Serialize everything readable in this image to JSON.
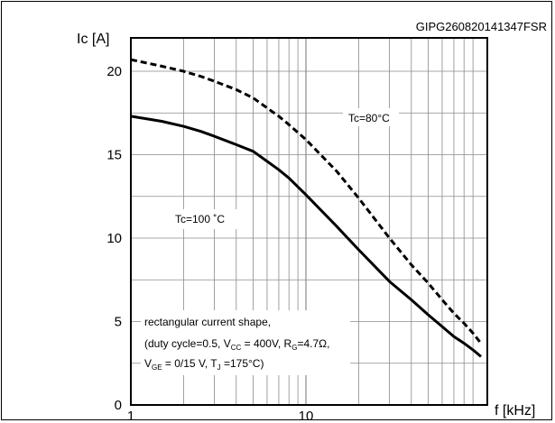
{
  "figure_code": "GIPG260820141347FSR",
  "chart_data": {
    "type": "line",
    "title": "",
    "xlabel": "f [kHz]",
    "ylabel": "Ic [A]",
    "x_scale": "log",
    "xlim": [
      1,
      100
    ],
    "ylim": [
      0,
      22
    ],
    "grid": true,
    "x_tick_labels": [
      "1",
      "10"
    ],
    "y_ticks": [
      0,
      5,
      10,
      15,
      20
    ],
    "y_tick_labels": [
      "0",
      "5",
      "10",
      "15",
      "20"
    ],
    "series": [
      {
        "name": "Tc=80°C",
        "style": "dashed",
        "x": [
          1,
          1.5,
          2,
          2.5,
          3,
          4,
          5,
          6,
          7,
          8,
          10,
          15,
          20,
          30,
          40,
          50,
          60,
          70,
          80,
          90,
          100
        ],
        "y": [
          20.7,
          20.3,
          20.0,
          19.7,
          19.4,
          18.9,
          18.4,
          17.8,
          17.3,
          16.8,
          15.9,
          14.0,
          12.4,
          10.0,
          8.4,
          7.3,
          6.3,
          5.5,
          4.9,
          4.3,
          3.7
        ]
      },
      {
        "name": "Tc=100 °C",
        "style": "solid",
        "x": [
          1,
          1.5,
          2,
          2.5,
          3,
          4,
          5,
          6,
          7,
          8,
          10,
          15,
          20,
          30,
          40,
          50,
          60,
          70,
          80,
          90,
          100
        ],
        "y": [
          17.3,
          17.0,
          16.7,
          16.4,
          16.1,
          15.6,
          15.2,
          14.6,
          14.1,
          13.6,
          12.6,
          10.7,
          9.3,
          7.4,
          6.3,
          5.4,
          4.7,
          4.1,
          3.7,
          3.3,
          2.9
        ]
      }
    ],
    "annotations": [
      {
        "id": "label80",
        "text": "Tc=80°C"
      },
      {
        "id": "label100",
        "text": "Tc=100 ˚C"
      }
    ]
  },
  "note": {
    "line1": "rectangular current shape,",
    "line2": {
      "prefix": "(duty cycle=0.5, V",
      "sub1": "CC",
      "mid": " = 400V, R",
      "sub2": "G",
      "suffix": "=4.7Ω,"
    },
    "line3": {
      "v": "V",
      "sub1": "GE",
      "mid": " = 0/15 V, T",
      "sub2": "J",
      "suffix": " =175°C)"
    }
  }
}
